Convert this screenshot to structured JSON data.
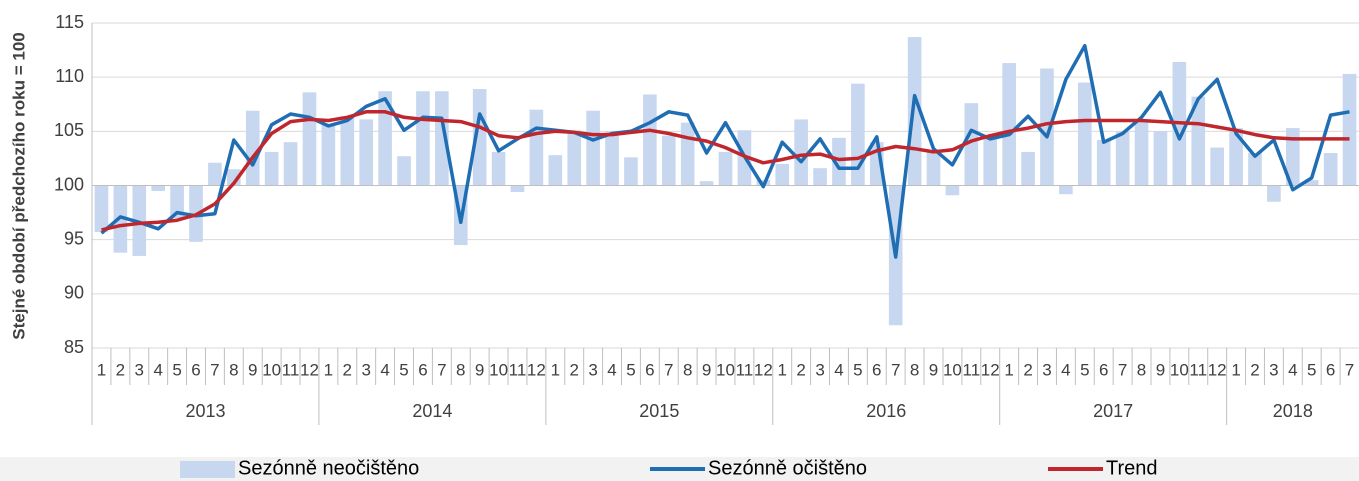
{
  "chart_data": {
    "type": "combo",
    "y_label": "Stejné období předchozího roku = 100",
    "categories": [
      "1",
      "2",
      "3",
      "4",
      "5",
      "6",
      "7",
      "8",
      "9",
      "10",
      "11",
      "12",
      "1",
      "2",
      "3",
      "4",
      "5",
      "6",
      "7",
      "8",
      "9",
      "10",
      "11",
      "12",
      "1",
      "2",
      "3",
      "4",
      "5",
      "6",
      "7",
      "8",
      "9",
      "10",
      "11",
      "12",
      "1",
      "2",
      "3",
      "4",
      "5",
      "6",
      "7",
      "8",
      "9",
      "10",
      "11",
      "12",
      "1",
      "2",
      "3",
      "4",
      "5",
      "6",
      "7",
      "8",
      "9",
      "10",
      "11",
      "12",
      "1",
      "2",
      "3",
      "4",
      "5",
      "6",
      "7"
    ],
    "years": [
      "2013",
      "2014",
      "2015",
      "2016",
      "2017",
      "2018"
    ],
    "x_axis_crossing": 100,
    "ylim": [
      85,
      115
    ],
    "yticks": [
      85,
      90,
      95,
      100,
      105,
      110,
      115
    ],
    "grid": true,
    "legend": "bottom",
    "series": [
      {
        "name": "Sezónně neočištěno",
        "type": "bar",
        "color": "#c6d7ef",
        "values": [
          95.7,
          93.8,
          93.5,
          99.5,
          97.0,
          94.8,
          102.1,
          101.5,
          106.9,
          103.1,
          104.0,
          108.6,
          105.6,
          106.4,
          106.1,
          108.7,
          102.7,
          108.7,
          108.7,
          94.5,
          108.9,
          103.1,
          99.4,
          107.0,
          102.8,
          105.1,
          106.9,
          105.0,
          102.6,
          108.4,
          104.6,
          105.8,
          100.4,
          103.1,
          105.1,
          100.5,
          102.0,
          106.1,
          101.6,
          104.4,
          109.4,
          104.0,
          87.1,
          113.7,
          103.2,
          99.1,
          107.6,
          104.5,
          111.3,
          103.1,
          110.8,
          99.2,
          109.5,
          104.2,
          105.0,
          106.0,
          105.0,
          111.4,
          108.2,
          103.5,
          105.3,
          103.0,
          98.5,
          105.3,
          100.5,
          103.0,
          110.3
        ]
      },
      {
        "name": "Sezónně očištěno",
        "type": "line",
        "color": "#1f6db3",
        "values": [
          95.6,
          97.1,
          96.6,
          96.0,
          97.5,
          97.2,
          97.4,
          104.2,
          101.9,
          105.6,
          106.6,
          106.3,
          105.5,
          106.0,
          107.3,
          108.0,
          105.1,
          106.3,
          106.2,
          96.6,
          106.6,
          103.2,
          104.3,
          105.3,
          105.1,
          104.9,
          104.2,
          104.8,
          105.0,
          105.8,
          106.8,
          106.5,
          103.0,
          105.8,
          102.7,
          99.9,
          104.0,
          102.2,
          104.3,
          101.6,
          101.6,
          104.5,
          93.4,
          108.3,
          103.4,
          101.9,
          105.1,
          104.3,
          104.7,
          106.4,
          104.5,
          109.8,
          112.9,
          104.0,
          104.8,
          106.3,
          108.6,
          104.3,
          108.0,
          109.8,
          104.8,
          102.7,
          104.2,
          99.6,
          100.7,
          106.5,
          106.8
        ]
      },
      {
        "name": "Trend",
        "type": "line",
        "color": "#c0272d",
        "values": [
          95.9,
          96.3,
          96.5,
          96.6,
          96.8,
          97.3,
          98.3,
          100.2,
          102.6,
          104.8,
          105.9,
          106.1,
          106.0,
          106.3,
          106.8,
          106.8,
          106.3,
          106.1,
          106.0,
          105.9,
          105.4,
          104.6,
          104.4,
          104.8,
          105.0,
          104.9,
          104.7,
          104.7,
          104.9,
          105.1,
          104.8,
          104.4,
          104.1,
          103.5,
          102.7,
          102.1,
          102.4,
          102.8,
          102.9,
          102.4,
          102.5,
          103.2,
          103.6,
          103.4,
          103.1,
          103.3,
          104.1,
          104.6,
          105.0,
          105.3,
          105.7,
          105.9,
          106.0,
          106.0,
          106.0,
          106.0,
          105.9,
          105.8,
          105.7,
          105.4,
          105.1,
          104.7,
          104.4,
          104.3,
          104.3,
          104.3,
          104.3
        ]
      }
    ]
  }
}
